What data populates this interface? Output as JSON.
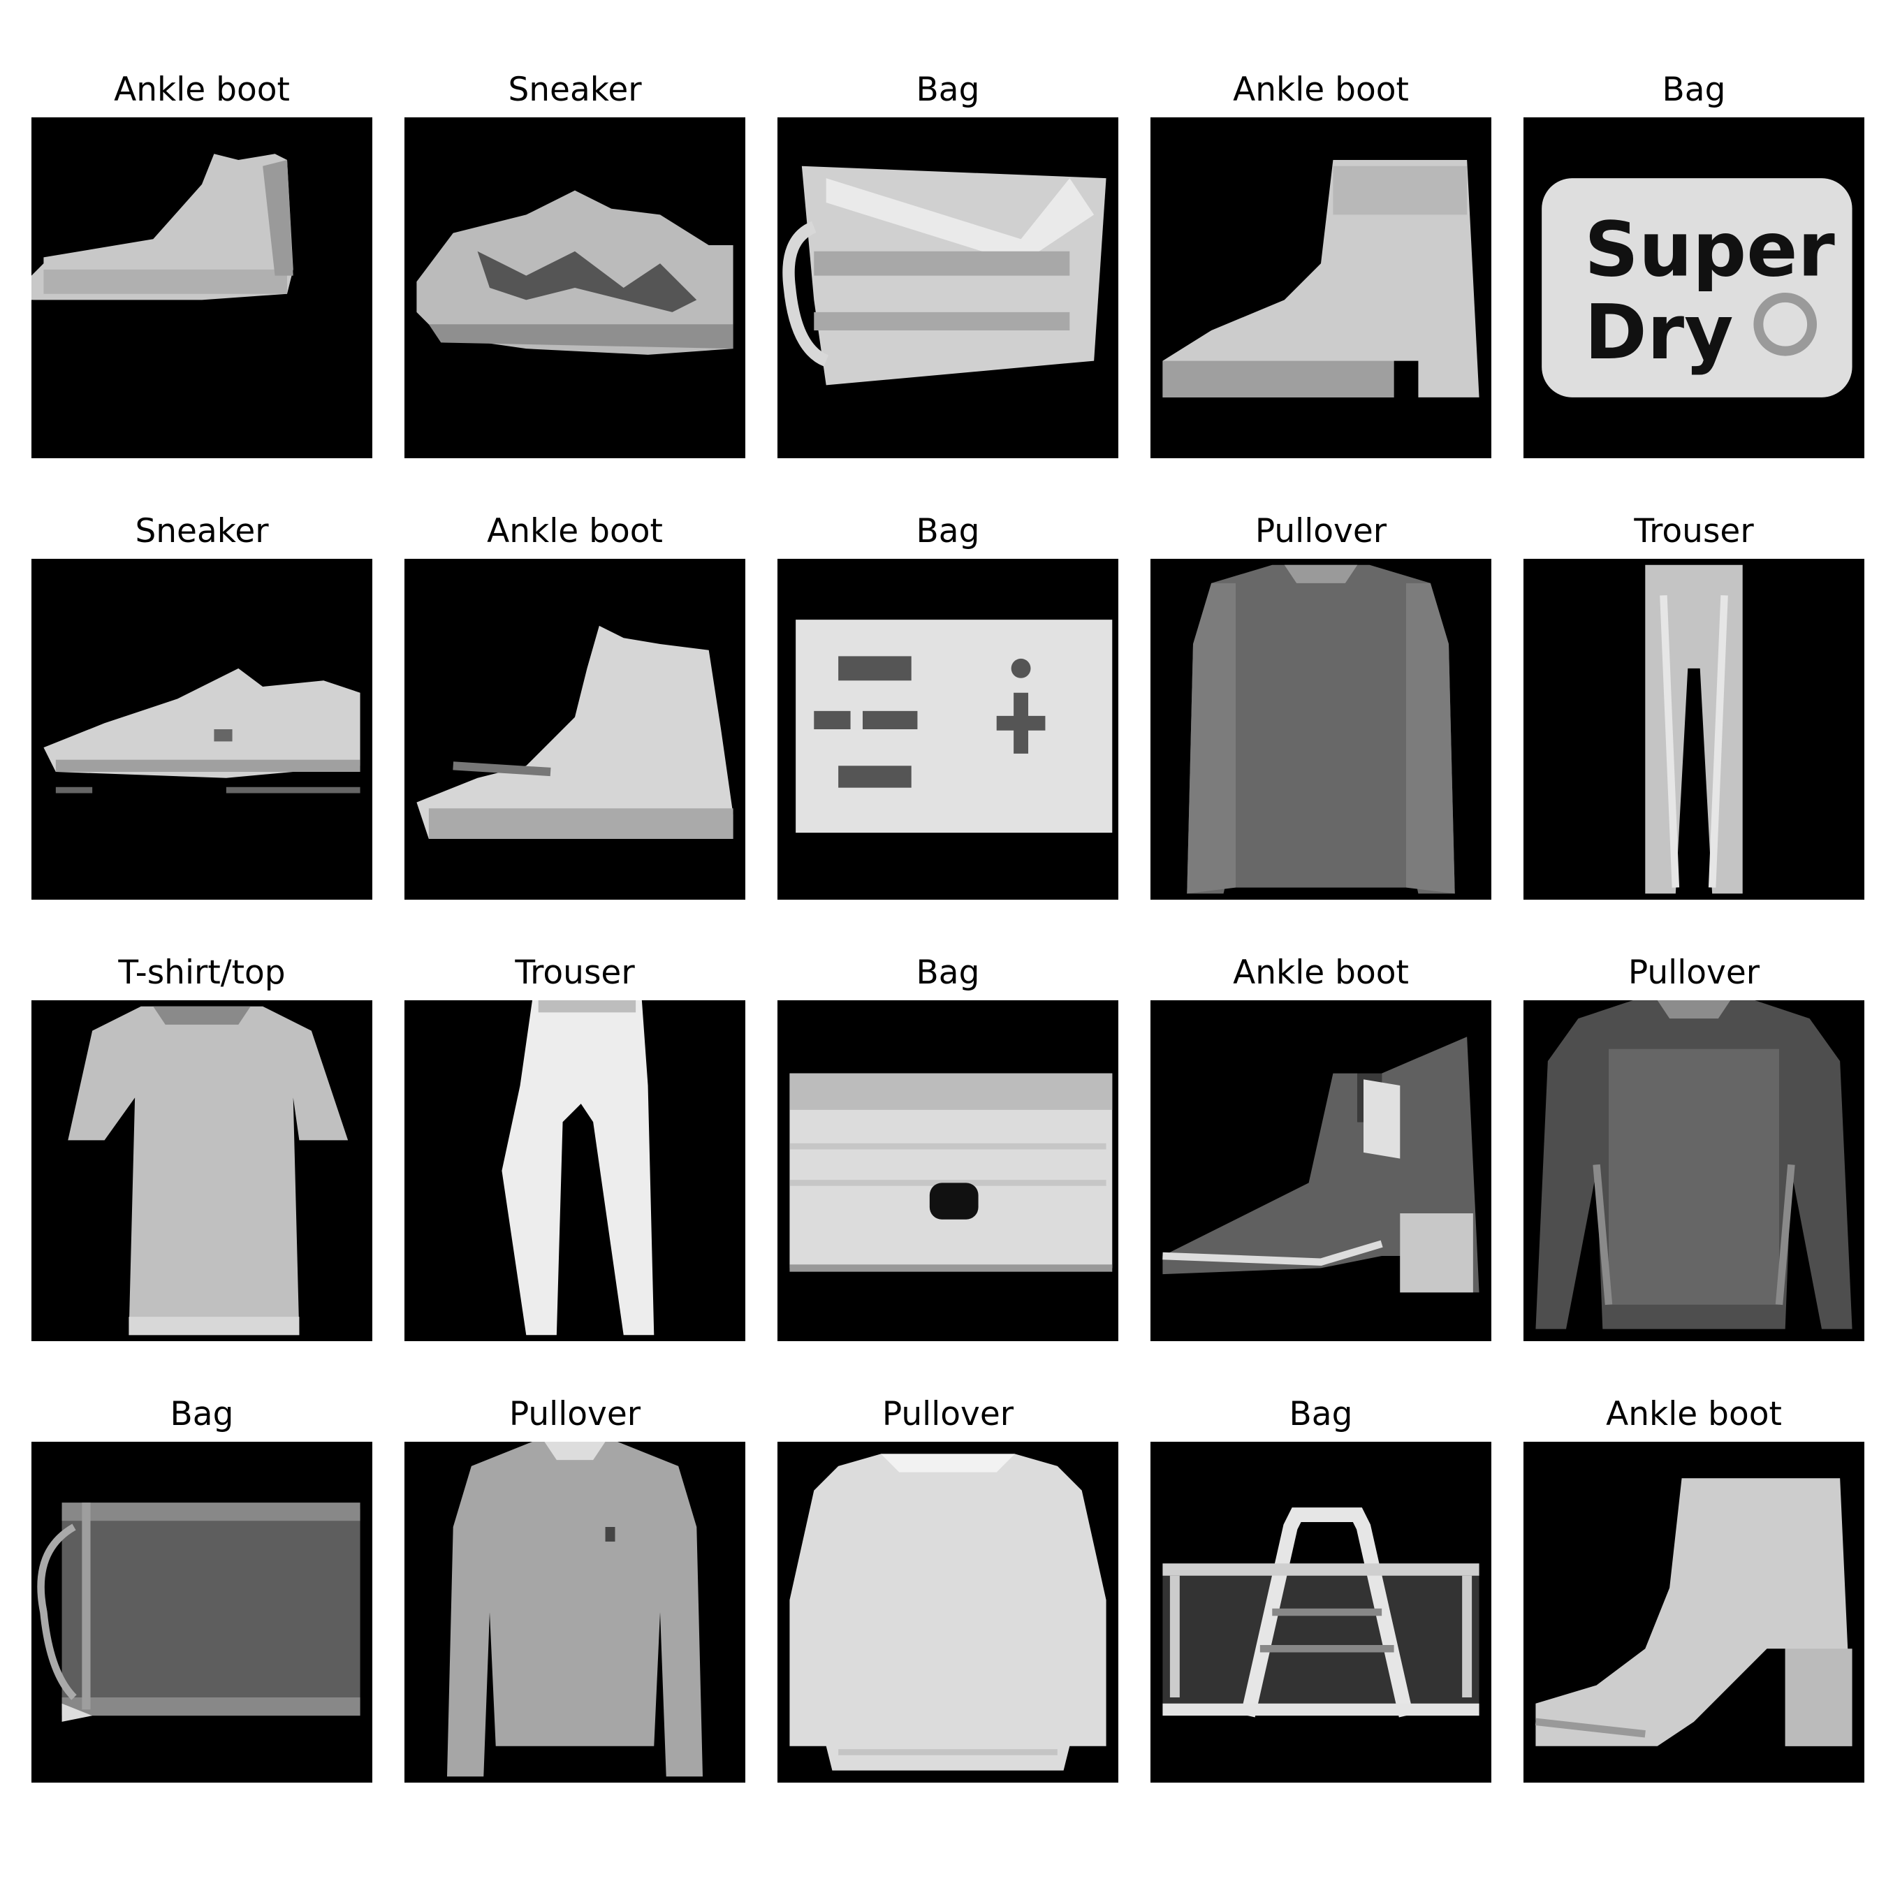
{
  "figure": {
    "items": [
      {
        "label": "Ankle boot",
        "icon": "ankle-boot-icon"
      },
      {
        "label": "Sneaker",
        "icon": "sneaker-icon"
      },
      {
        "label": "Bag",
        "icon": "bag-icon"
      },
      {
        "label": "Ankle boot",
        "icon": "ankle-boot-icon"
      },
      {
        "label": "Bag",
        "icon": "bag-icon"
      },
      {
        "label": "Sneaker",
        "icon": "sneaker-icon"
      },
      {
        "label": "Ankle boot",
        "icon": "ankle-boot-icon"
      },
      {
        "label": "Bag",
        "icon": "bag-icon"
      },
      {
        "label": "Pullover",
        "icon": "pullover-icon"
      },
      {
        "label": "Trouser",
        "icon": "trouser-icon"
      },
      {
        "label": "T-shirt/top",
        "icon": "tshirt-icon"
      },
      {
        "label": "Trouser",
        "icon": "trouser-icon"
      },
      {
        "label": "Bag",
        "icon": "bag-icon"
      },
      {
        "label": "Ankle boot",
        "icon": "ankle-boot-icon"
      },
      {
        "label": "Pullover",
        "icon": "pullover-icon"
      },
      {
        "label": "Bag",
        "icon": "bag-icon"
      },
      {
        "label": "Pullover",
        "icon": "pullover-icon"
      },
      {
        "label": "Pullover",
        "icon": "pullover-icon"
      },
      {
        "label": "Bag",
        "icon": "bag-icon"
      },
      {
        "label": "Ankle boot",
        "icon": "ankle-boot-icon"
      }
    ],
    "embedded_text": [
      "Super",
      "Dry"
    ],
    "colors": {
      "background": "#ffffff",
      "image_background": "#000000"
    }
  }
}
